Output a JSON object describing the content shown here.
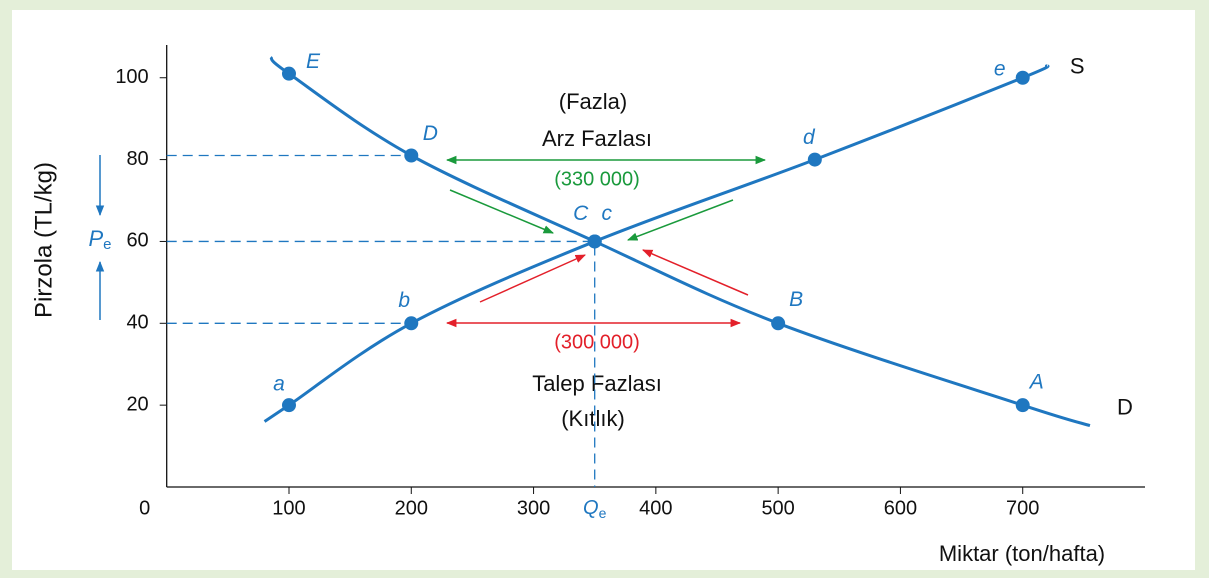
{
  "chart_data": {
    "type": "line",
    "xlabel": "Miktar (ton/hafta)",
    "ylabel": "Pirzola (TL/kg)",
    "xlim": [
      0,
      800
    ],
    "ylim": [
      0,
      108
    ],
    "xticks": [
      0,
      100,
      200,
      300,
      400,
      500,
      600,
      700
    ],
    "yticks": [
      20,
      40,
      60,
      80,
      100
    ],
    "series": [
      {
        "name": "S",
        "color": "#1f77c0",
        "x": [
          80,
          100,
          200,
          350,
          530,
          700,
          720
        ],
        "values": [
          16,
          20,
          40,
          60,
          80,
          100,
          103
        ],
        "point_labels": [
          null,
          "a",
          "b",
          "c",
          "d",
          "e",
          null
        ]
      },
      {
        "name": "D",
        "color": "#1f77c0",
        "x": [
          85,
          100,
          200,
          350,
          500,
          700,
          755
        ],
        "values": [
          105,
          101,
          81,
          60,
          40,
          20,
          15
        ],
        "point_labels": [
          null,
          "E",
          "D",
          "C",
          "B",
          "A",
          null
        ]
      }
    ],
    "annotations": {
      "surplus_top": "(Fazla)",
      "surplus": "Arz Fazlası",
      "surplus_amount": "(330 000)",
      "shortage_amount": "(300 000)",
      "shortage": "Talep Fazlası",
      "shortage_bottom": "(Kıtlık)",
      "price_eq": {
        "main": "P",
        "sub": "e"
      },
      "quantity_eq": {
        "main": "Q",
        "sub": "e"
      }
    }
  }
}
